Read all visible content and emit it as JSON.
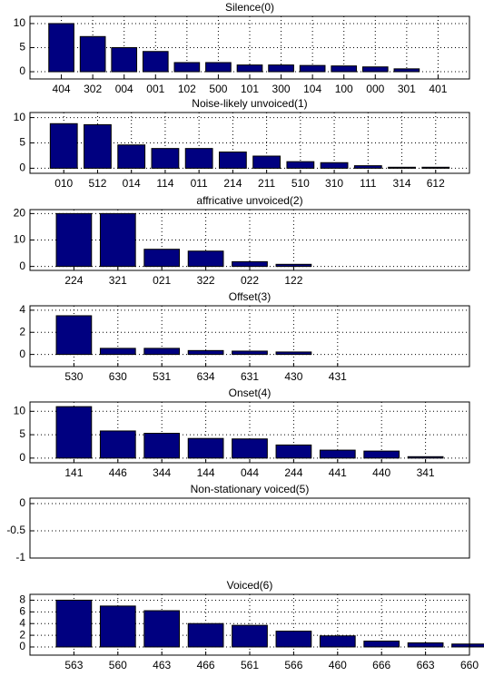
{
  "chart_data": [
    {
      "type": "bar",
      "title": "Silence(0)",
      "categories": [
        "404",
        "302",
        "004",
        "001",
        "102",
        "500",
        "101",
        "300",
        "104",
        "100",
        "000",
        "301",
        "401"
      ],
      "values": [
        10,
        7.3,
        5,
        4.2,
        1.9,
        1.9,
        1.4,
        1.4,
        1.3,
        1.2,
        1.0,
        0.6,
        0
      ],
      "color": "#000080",
      "xlim": [
        0,
        14
      ],
      "ylim": [
        -1.5,
        11.5
      ],
      "yticks": [
        0,
        5,
        10
      ],
      "grid": true
    },
    {
      "type": "bar",
      "title": "Noise-likely unvoiced(1)",
      "categories": [
        "010",
        "512",
        "014",
        "114",
        "011",
        "214",
        "211",
        "510",
        "310",
        "111",
        "314",
        "612"
      ],
      "values": [
        8.8,
        8.6,
        4.6,
        3.9,
        3.9,
        3.2,
        2.4,
        1.3,
        1.1,
        0.5,
        0.2,
        0.2
      ],
      "color": "#000080",
      "xlim": [
        0,
        13
      ],
      "ylim": [
        -1,
        11
      ],
      "yticks": [
        0,
        5,
        10
      ],
      "grid": true
    },
    {
      "type": "bar",
      "title": "affricative unvoiced(2)",
      "categories": [
        "224",
        "321",
        "021",
        "322",
        "022",
        "122"
      ],
      "values": [
        20,
        20,
        6.5,
        5.8,
        1.8,
        0.8
      ],
      "color": "#000080",
      "xlim": [
        0,
        10
      ],
      "ylim": [
        -1.5,
        21.5
      ],
      "yticks": [
        0,
        10,
        20
      ],
      "grid": true
    },
    {
      "type": "bar",
      "title": "Offset(3)",
      "categories": [
        "530",
        "630",
        "531",
        "634",
        "631",
        "430",
        "431"
      ],
      "values": [
        3.5,
        0.55,
        0.55,
        0.35,
        0.3,
        0.22,
        0
      ],
      "color": "#000080",
      "xlim": [
        0,
        10
      ],
      "ylim": [
        -1.1,
        4.4
      ],
      "yticks": [
        0,
        2,
        4
      ],
      "grid": true
    },
    {
      "type": "bar",
      "title": "Onset(4)",
      "categories": [
        "141",
        "446",
        "344",
        "144",
        "044",
        "244",
        "441",
        "440",
        "341"
      ],
      "values": [
        11,
        5.8,
        5.3,
        4.2,
        4.1,
        2.8,
        1.7,
        1.5,
        0.3
      ],
      "color": "#000080",
      "xlim": [
        0,
        10
      ],
      "ylim": [
        -1,
        12
      ],
      "yticks": [
        0,
        5,
        10
      ],
      "grid": true
    },
    {
      "type": "bar",
      "title": "Non-stationary voiced(5)",
      "categories": [],
      "values": [],
      "color": "#000080",
      "ylim": [
        -1,
        0.1
      ],
      "yticks": [
        0,
        -0.5,
        -1
      ],
      "grid": true
    },
    {
      "type": "bar",
      "title": "Voiced(6)",
      "categories": [
        "563",
        "560",
        "463",
        "466",
        "561",
        "566",
        "460",
        "666",
        "663",
        "660"
      ],
      "values": [
        8,
        7,
        6.2,
        4,
        3.7,
        2.7,
        1.9,
        1.0,
        0.7,
        0.5
      ],
      "color": "#000080",
      "xlim": [
        0,
        10
      ],
      "ylim": [
        -1.4,
        9
      ],
      "yticks": [
        0,
        2,
        4,
        6,
        8
      ],
      "grid": true
    }
  ]
}
